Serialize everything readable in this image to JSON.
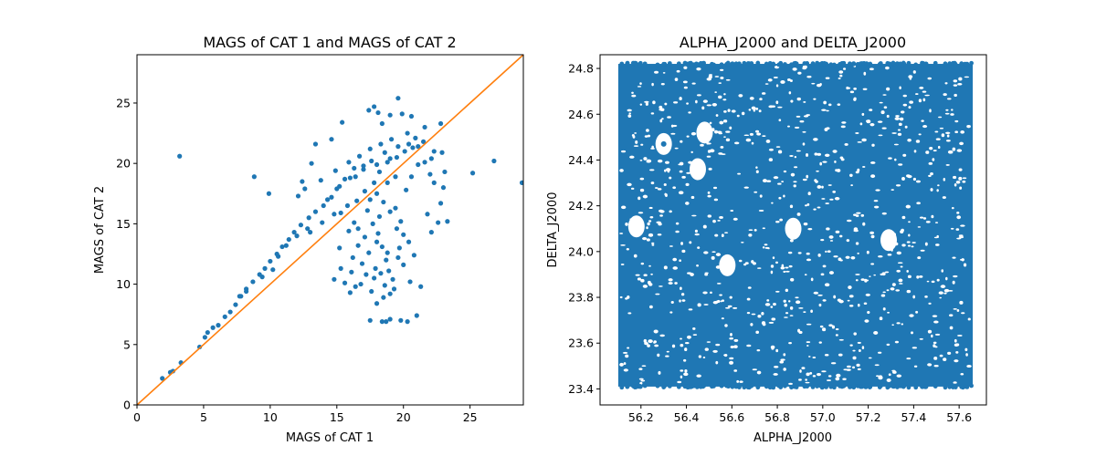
{
  "colors": {
    "points": "#1f77b4",
    "identity_line": "#ff7f0e"
  },
  "chart_data": [
    {
      "type": "scatter",
      "title": "MAGS of CAT 1 and MAGS of CAT 2",
      "xlabel": "MAGS of CAT 1",
      "ylabel": "MAGS of CAT 2",
      "xlim": [
        0,
        29
      ],
      "ylim": [
        0,
        29
      ],
      "xticks": [
        0,
        5,
        10,
        15,
        20,
        25
      ],
      "yticks": [
        0,
        5,
        10,
        15,
        20,
        25
      ],
      "xtick_labels": [
        "0",
        "5",
        "10",
        "15",
        "20",
        "25"
      ],
      "ytick_labels": [
        "0",
        "5",
        "10",
        "15",
        "20",
        "25"
      ],
      "reference_line": {
        "from": [
          0,
          0
        ],
        "to": [
          29,
          29
        ]
      },
      "points": [
        [
          1.9,
          2.2
        ],
        [
          2.5,
          2.7
        ],
        [
          2.7,
          2.8
        ],
        [
          3.3,
          3.5
        ],
        [
          3.2,
          20.6
        ],
        [
          4.7,
          4.8
        ],
        [
          5.1,
          5.6
        ],
        [
          5.3,
          6.0
        ],
        [
          5.7,
          6.4
        ],
        [
          6.1,
          6.6
        ],
        [
          6.6,
          7.3
        ],
        [
          7.0,
          7.7
        ],
        [
          7.4,
          8.3
        ],
        [
          7.8,
          9.0
        ],
        [
          8.2,
          9.4
        ],
        [
          8.8,
          18.9
        ],
        [
          9.4,
          10.6
        ],
        [
          9.9,
          17.5
        ],
        [
          10.2,
          11.2
        ],
        [
          12.4,
          18.5
        ],
        [
          13.1,
          20.0
        ],
        [
          13.0,
          14.3
        ],
        [
          13.4,
          21.6
        ],
        [
          14.6,
          22.0
        ],
        [
          15.4,
          23.4
        ],
        [
          15.6,
          18.7
        ],
        [
          16.3,
          19.6
        ],
        [
          17.0,
          19.8
        ],
        [
          17.4,
          24.4
        ],
        [
          17.8,
          24.7
        ],
        [
          18.1,
          24.2
        ],
        [
          18.4,
          23.3
        ],
        [
          19.0,
          24.0
        ],
        [
          19.6,
          25.4
        ],
        [
          19.9,
          24.1
        ],
        [
          20.3,
          22.5
        ],
        [
          20.6,
          23.9
        ],
        [
          21.6,
          23.0
        ],
        [
          22.1,
          20.4
        ],
        [
          22.8,
          23.3
        ],
        [
          22.9,
          20.9
        ],
        [
          22.3,
          18.4
        ],
        [
          23.1,
          19.3
        ],
        [
          23.0,
          18.0
        ],
        [
          21.8,
          15.8
        ],
        [
          22.8,
          16.7
        ],
        [
          22.6,
          15.1
        ],
        [
          22.1,
          14.3
        ],
        [
          23.3,
          15.2
        ],
        [
          20.5,
          10.2
        ],
        [
          21.3,
          9.8
        ],
        [
          20.8,
          12.4
        ],
        [
          21.0,
          7.4
        ],
        [
          16.8,
          10.0
        ],
        [
          16.0,
          9.3
        ],
        [
          15.6,
          10.1
        ],
        [
          16.2,
          12.2
        ],
        [
          17.5,
          7.0
        ],
        [
          18.0,
          8.4
        ],
        [
          18.4,
          6.9
        ],
        [
          19.0,
          7.1
        ],
        [
          19.8,
          7.0
        ],
        [
          20.3,
          6.9
        ],
        [
          18.7,
          6.9
        ],
        [
          14.8,
          10.4
        ],
        [
          15.3,
          11.3
        ],
        [
          15.2,
          13.0
        ],
        [
          16.6,
          14.6
        ],
        [
          25.2,
          19.2
        ],
        [
          26.8,
          20.2
        ],
        [
          28.9,
          18.4
        ],
        [
          15.3,
          15.9
        ],
        [
          15.8,
          16.5
        ],
        [
          16.5,
          16.9
        ],
        [
          17.1,
          17.7
        ],
        [
          17.8,
          18.4
        ],
        [
          18.2,
          19.3
        ],
        [
          18.8,
          20.1
        ],
        [
          19.5,
          20.5
        ],
        [
          20.1,
          21.0
        ],
        [
          20.7,
          21.3
        ],
        [
          21.1,
          21.4
        ],
        [
          20.4,
          21.6
        ],
        [
          19.6,
          21.4
        ],
        [
          18.6,
          20.9
        ],
        [
          17.6,
          20.2
        ],
        [
          16.4,
          18.9
        ],
        [
          15.2,
          18.1
        ],
        [
          14.6,
          17.2
        ],
        [
          14.0,
          16.5
        ],
        [
          13.4,
          16.0
        ],
        [
          12.9,
          15.5
        ],
        [
          12.3,
          14.9
        ],
        [
          11.8,
          14.3
        ],
        [
          11.4,
          13.7
        ],
        [
          10.9,
          13.1
        ],
        [
          10.5,
          12.5
        ],
        [
          10.0,
          11.9
        ],
        [
          9.6,
          11.3
        ],
        [
          9.2,
          10.8
        ],
        [
          8.7,
          10.2
        ],
        [
          8.2,
          9.6
        ],
        [
          7.7,
          9.0
        ],
        [
          14.3,
          17.0
        ],
        [
          15.0,
          17.9
        ],
        [
          16.0,
          18.8
        ],
        [
          17.0,
          19.5
        ],
        [
          18.0,
          19.9
        ],
        [
          19.0,
          20.4
        ],
        [
          17.3,
          16.1
        ],
        [
          17.7,
          15.0
        ],
        [
          18.1,
          14.2
        ],
        [
          18.4,
          13.1
        ],
        [
          18.7,
          12.0
        ],
        [
          18.9,
          11.1
        ],
        [
          19.2,
          10.4
        ],
        [
          17.4,
          12.6
        ],
        [
          17.1,
          13.9
        ],
        [
          17.9,
          11.3
        ],
        [
          18.6,
          9.9
        ],
        [
          19.3,
          9.6
        ],
        [
          17.2,
          10.8
        ],
        [
          16.9,
          11.7
        ],
        [
          19.4,
          16.3
        ],
        [
          19.8,
          15.2
        ],
        [
          20.0,
          14.1
        ],
        [
          19.7,
          13.0
        ],
        [
          20.2,
          17.8
        ],
        [
          20.6,
          18.9
        ],
        [
          21.1,
          19.9
        ],
        [
          21.6,
          20.1
        ],
        [
          22.0,
          19.1
        ],
        [
          16.3,
          15.1
        ],
        [
          15.9,
          14.4
        ],
        [
          16.6,
          13.2
        ],
        [
          14.8,
          15.8
        ],
        [
          13.9,
          15.1
        ],
        [
          12.8,
          14.6
        ],
        [
          12.0,
          14.0
        ],
        [
          11.2,
          13.2
        ],
        [
          10.6,
          12.3
        ],
        [
          19.1,
          22.0
        ],
        [
          18.3,
          21.6
        ],
        [
          17.5,
          21.2
        ],
        [
          16.7,
          20.6
        ],
        [
          15.9,
          20.1
        ],
        [
          14.9,
          19.4
        ],
        [
          13.8,
          18.6
        ],
        [
          12.6,
          17.9
        ],
        [
          12.1,
          17.3
        ],
        [
          20.9,
          22.1
        ],
        [
          21.5,
          21.8
        ],
        [
          22.3,
          21.0
        ],
        [
          18.0,
          17.5
        ],
        [
          18.5,
          16.8
        ],
        [
          19.0,
          16.0
        ],
        [
          18.8,
          18.4
        ],
        [
          19.4,
          18.9
        ],
        [
          18.2,
          15.6
        ],
        [
          17.5,
          17.0
        ],
        [
          19.5,
          14.6
        ],
        [
          18.0,
          13.5
        ],
        [
          18.8,
          12.6
        ],
        [
          17.8,
          10.5
        ],
        [
          18.3,
          10.9
        ],
        [
          19.0,
          9.2
        ],
        [
          18.5,
          8.9
        ],
        [
          17.6,
          9.4
        ],
        [
          16.4,
          9.8
        ],
        [
          16.1,
          11.0
        ],
        [
          20.0,
          11.6
        ],
        [
          20.4,
          13.5
        ],
        [
          19.6,
          12.2
        ]
      ]
    },
    {
      "type": "scatter",
      "title": "ALPHA_J2000 and DELTA_J2000",
      "xlabel": "ALPHA_J2000",
      "ylabel": "DELTA_J2000",
      "xlim": [
        56.02,
        57.72
      ],
      "ylim": [
        23.33,
        24.86
      ],
      "xticks": [
        56.2,
        56.4,
        56.6,
        56.8,
        57.0,
        57.2,
        57.4,
        57.6
      ],
      "yticks": [
        23.4,
        23.6,
        23.8,
        24.0,
        24.2,
        24.4,
        24.6,
        24.8
      ],
      "xtick_labels": [
        "56.2",
        "56.4",
        "56.6",
        "56.8",
        "57.0",
        "57.2",
        "57.4",
        "57.6"
      ],
      "ytick_labels": [
        "23.4",
        "23.6",
        "23.8",
        "24.0",
        "24.2",
        "24.4",
        "24.6",
        "24.8"
      ],
      "coverage": {
        "ra_range": [
          56.1,
          57.66
        ],
        "dec_range": [
          23.41,
          24.82
        ]
      },
      "holes": [
        {
          "ra": 56.3,
          "dec": 24.47
        },
        {
          "ra": 56.48,
          "dec": 24.52
        },
        {
          "ra": 56.45,
          "dec": 24.36
        },
        {
          "ra": 56.18,
          "dec": 24.11
        },
        {
          "ra": 56.58,
          "dec": 23.94
        },
        {
          "ra": 56.87,
          "dec": 24.1
        },
        {
          "ra": 57.29,
          "dec": 24.05
        }
      ]
    }
  ]
}
